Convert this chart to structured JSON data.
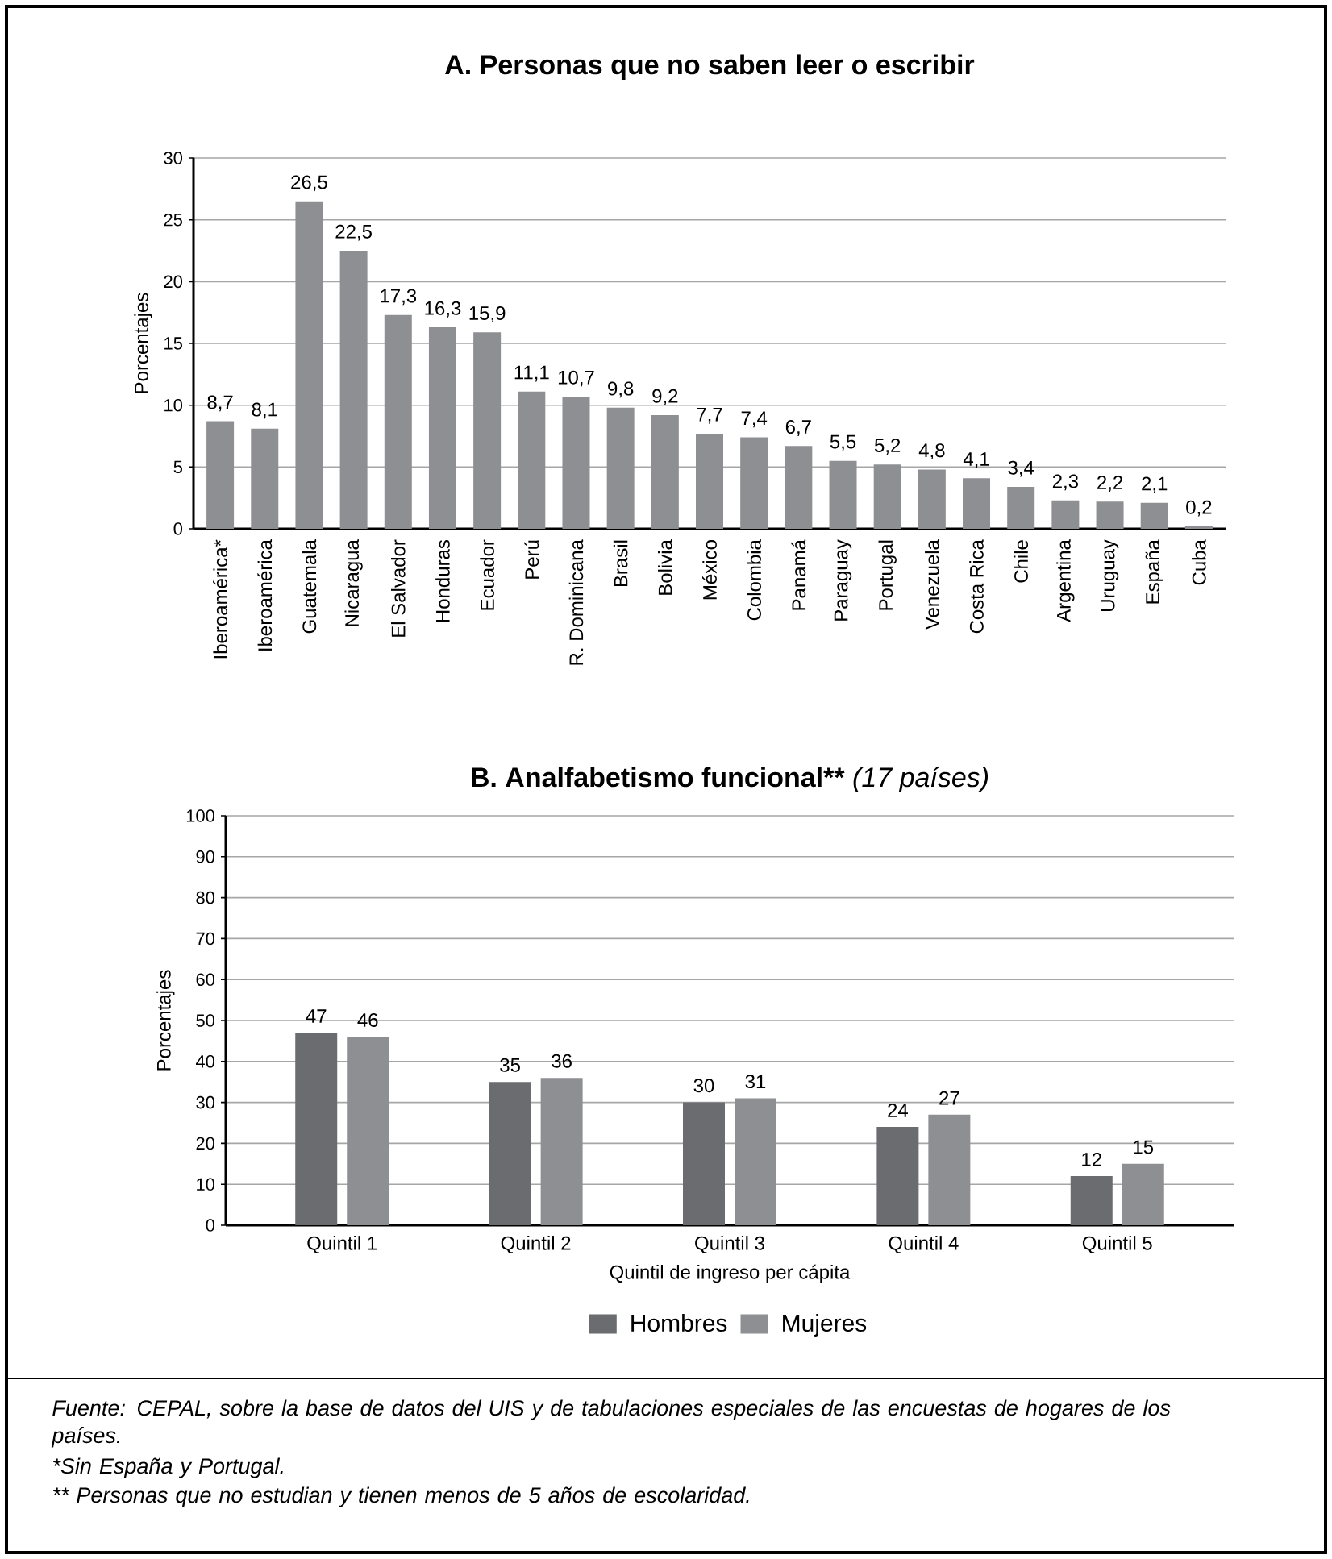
{
  "chart_data": [
    {
      "type": "bar",
      "title": "A. Personas que no saben leer o escribir",
      "ylabel": "Porcentajes",
      "categories": [
        "Iberoamérica*",
        "Iberoamérica",
        "Guatemala",
        "Nicaragua",
        "El Salvador",
        "Honduras",
        "Ecuador",
        "Perú",
        "R. Dominicana",
        "Brasil",
        "Bolivia",
        "México",
        "Colombia",
        "Panamá",
        "Paraguay",
        "Portugal",
        "Venezuela",
        "Costa Rica",
        "Chile",
        "Argentina",
        "Uruguay",
        "España",
        "Cuba"
      ],
      "values": [
        8.7,
        8.1,
        26.5,
        22.5,
        17.3,
        16.3,
        15.9,
        11.1,
        10.7,
        9.8,
        9.2,
        7.7,
        7.4,
        6.7,
        5.5,
        5.2,
        4.8,
        4.1,
        3.4,
        2.3,
        2.2,
        2.1,
        0.2
      ],
      "value_labels": [
        "8,7",
        "8,1",
        "26,5",
        "22,5",
        "17,3",
        "16,3",
        "15,9",
        "11,1",
        "10,7",
        "9,8",
        "9,2",
        "7,7",
        "7,4",
        "6,7",
        "5,5",
        "5,2",
        "4,8",
        "4,1",
        "3,4",
        "2,3",
        "2,2",
        "2,1",
        "0,2"
      ],
      "color": "#8e8f92",
      "ylim": [
        0,
        30
      ],
      "yticks": [
        0,
        5,
        10,
        15,
        20,
        25,
        30
      ],
      "grid": "y"
    },
    {
      "type": "bar",
      "title": "B. Analfabetismo funcional**",
      "subtitle": "(17 países)",
      "ylabel": "Porcentajes",
      "xlabel": "Quintil de ingreso per cápita",
      "categories": [
        "Quintil 1",
        "Quintil 2",
        "Quintil 3",
        "Quintil 4",
        "Quintil 5"
      ],
      "series": [
        {
          "name": "Hombres",
          "color": "#6b6c70",
          "values": [
            47,
            35,
            30,
            24,
            12
          ],
          "value_labels": [
            "47",
            "35",
            "30",
            "24",
            "12"
          ]
        },
        {
          "name": "Mujeres",
          "color": "#8e8f92",
          "values": [
            46,
            36,
            31,
            27,
            15
          ],
          "value_labels": [
            "46",
            "36",
            "31",
            "27",
            "15"
          ]
        }
      ],
      "ylim": [
        0,
        100
      ],
      "yticks": [
        0,
        10,
        20,
        30,
        40,
        50,
        60,
        70,
        80,
        90,
        100
      ],
      "grid": "y",
      "legend": "bottom",
      "annotations": [
        "Fuente: CEPAL, sobre la base de datos del UIS y de tabulaciones especiales de las encuestas de hogares de los países.",
        "*Sin España y Portugal.",
        "** Personas que no estudian y tienen menos de 5 años de escolaridad."
      ]
    }
  ]
}
